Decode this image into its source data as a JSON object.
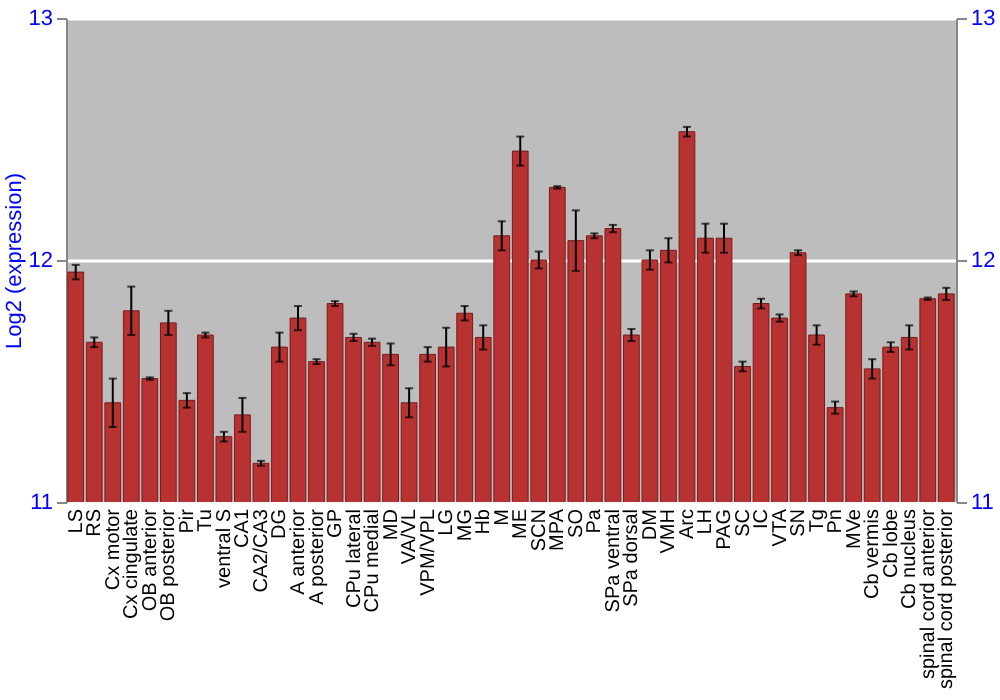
{
  "chart_data": {
    "type": "bar",
    "ylabel": "Log2 (expression)",
    "categories": [
      "LS",
      "RS",
      "Cx motor",
      "Cx cingulate",
      "OB anterior",
      "OB posterior",
      "Pir",
      "Tu",
      "ventral S",
      "CA1",
      "CA2/CA3",
      "DG",
      "A anterior",
      "A posterior",
      "GP",
      "CPu lateral",
      "CPu medial",
      "MD",
      "VA/VL",
      "VPM/VPL",
      "LG",
      "MG",
      "Hb",
      "M",
      "ME",
      "SCN",
      "MPA",
      "SO",
      "Pa",
      "SPa ventral",
      "SPa dorsal",
      "DM",
      "VMH",
      "Arc",
      "LH",
      "PAG",
      "SC",
      "IC",
      "VTA",
      "SN",
      "Tg",
      "Pn",
      "MVe",
      "Cb vermis",
      "Cb lobe",
      "Cb nucleus",
      "spinal cord anterior",
      "spinal cord posterior"
    ],
    "values": [
      11.95,
      11.66,
      11.41,
      11.79,
      11.51,
      11.74,
      11.42,
      11.69,
      11.27,
      11.36,
      11.16,
      11.64,
      11.76,
      11.58,
      11.82,
      11.68,
      11.66,
      11.61,
      11.41,
      11.61,
      11.64,
      11.78,
      11.68,
      12.1,
      12.45,
      12.0,
      12.3,
      12.08,
      12.1,
      12.13,
      11.69,
      12.0,
      12.04,
      12.53,
      12.09,
      12.09,
      11.56,
      11.82,
      11.76,
      12.03,
      11.69,
      11.39,
      11.86,
      11.55,
      11.64,
      11.68,
      11.84,
      11.86
    ],
    "errors": [
      0.03,
      0.02,
      0.1,
      0.1,
      0.005,
      0.05,
      0.03,
      0.01,
      0.02,
      0.07,
      0.01,
      0.06,
      0.05,
      0.01,
      0.01,
      0.015,
      0.015,
      0.045,
      0.06,
      0.03,
      0.08,
      0.03,
      0.05,
      0.06,
      0.06,
      0.035,
      0.005,
      0.125,
      0.01,
      0.015,
      0.025,
      0.04,
      0.05,
      0.02,
      0.06,
      0.06,
      0.02,
      0.02,
      0.015,
      0.01,
      0.04,
      0.025,
      0.01,
      0.04,
      0.02,
      0.05,
      0.005,
      0.025
    ],
    "color": "#b83232",
    "ylim": [
      11,
      13
    ],
    "yticks": [
      11,
      12,
      13
    ],
    "y2lim": [
      11,
      13
    ],
    "y2ticks": [
      11,
      12,
      13
    ],
    "grid": true
  }
}
